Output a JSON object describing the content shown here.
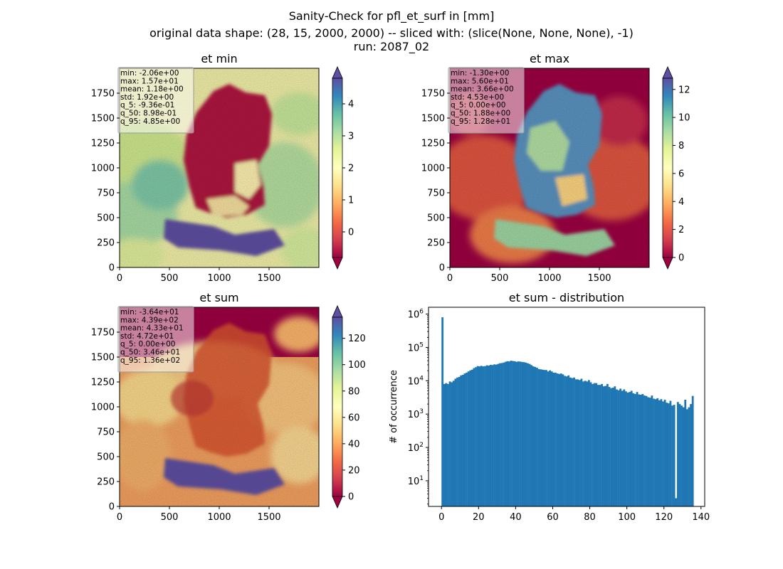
{
  "figure": {
    "title_line1": "Sanity-Check for pfl_et_surf in [mm]",
    "title_line2": "original data shape: (28, 15, 2000, 2000) -- sliced with: (slice(None, None, None), -1)",
    "title_line3": "run: 2087_02"
  },
  "chart_data": [
    {
      "type": "heatmap",
      "title": "et min",
      "colormap": "Spectral",
      "xlim": [
        0,
        2000
      ],
      "ylim": [
        0,
        2000
      ],
      "xticks": [
        "0",
        "500",
        "1000",
        "1500"
      ],
      "yticks": [
        "0",
        "250",
        "500",
        "750",
        "1000",
        "1250",
        "1500",
        "1750"
      ],
      "colorbar_range": [
        -0.8,
        4.8
      ],
      "colorbar_ticks": [
        "0",
        "1",
        "2",
        "3",
        "4"
      ],
      "colorbar_values": [
        0,
        1,
        2,
        3,
        4
      ],
      "colorbar_extend": "both",
      "stats": [
        "min: -2.06e+00",
        "max: 1.57e+01",
        "mean: 1.18e+00",
        "std: 1.92e+00",
        "q_5: -9.36e-01",
        "q_50: 8.98e-01",
        "q_95: 4.85e+00"
      ]
    },
    {
      "type": "heatmap",
      "title": "et max",
      "colormap": "Spectral",
      "xlim": [
        0,
        2000
      ],
      "ylim": [
        0,
        2000
      ],
      "xticks": [
        "0",
        "500",
        "1000",
        "1500"
      ],
      "yticks": [
        "0",
        "250",
        "500",
        "750",
        "1000",
        "1250",
        "1500",
        "1750"
      ],
      "colorbar_range": [
        0,
        12.8
      ],
      "colorbar_ticks": [
        "0",
        "2",
        "4",
        "6",
        "8",
        "10",
        "12"
      ],
      "colorbar_values": [
        0,
        2,
        4,
        6,
        8,
        10,
        12
      ],
      "colorbar_extend": "both",
      "stats": [
        "min: -1.30e+00",
        "max: 5.60e+01",
        "mean: 3.66e+00",
        "std: 4.53e+00",
        "q_5: 0.00e+00",
        "q_50: 1.88e+00",
        "q_95: 1.28e+01"
      ]
    },
    {
      "type": "heatmap",
      "title": "et sum",
      "colormap": "Spectral",
      "xlim": [
        0,
        2000
      ],
      "ylim": [
        0,
        2000
      ],
      "xticks": [
        "0",
        "500",
        "1000",
        "1500"
      ],
      "yticks": [
        "0",
        "250",
        "500",
        "750",
        "1000",
        "1250",
        "1500",
        "1750"
      ],
      "colorbar_range": [
        0,
        136
      ],
      "colorbar_ticks": [
        "0",
        "20",
        "40",
        "60",
        "80",
        "100",
        "120"
      ],
      "colorbar_values": [
        0,
        20,
        40,
        60,
        80,
        100,
        120
      ],
      "colorbar_extend": "both",
      "stats": [
        "min: -3.64e+01",
        "max: 4.39e+02",
        "mean: 4.33e+01",
        "std: 4.72e+01",
        "q_5: 0.00e+00",
        "q_50: 3.46e+01",
        "q_95: 1.36e+02"
      ]
    },
    {
      "type": "bar",
      "title": "et sum - distribution",
      "ylabel": "# of occurrence",
      "xlabel": "",
      "yscale": "log",
      "xlim": [
        -7,
        142
      ],
      "ylim": [
        1.7,
        1600000
      ],
      "xticks": [
        0,
        20,
        40,
        60,
        80,
        100,
        120,
        140
      ],
      "yticks": [
        1,
        2,
        3,
        4,
        5,
        6
      ],
      "color": "#1f77b4",
      "x": [
        0.5,
        1.5,
        2.5,
        3.5,
        4.5,
        5.5,
        6.5,
        7.5,
        8.5,
        9.5,
        10.5,
        11.5,
        12.5,
        13.5,
        14.5,
        15.5,
        16.5,
        17.5,
        18.5,
        19.5,
        20.5,
        21.5,
        22.5,
        23.5,
        24.5,
        25.5,
        26.5,
        27.5,
        28.5,
        29.5,
        30.5,
        31.5,
        32.5,
        33.5,
        34.5,
        35.5,
        36.5,
        37.5,
        38.5,
        39.5,
        40.5,
        41.5,
        42.5,
        43.5,
        44.5,
        45.5,
        46.5,
        47.5,
        48.5,
        49.5,
        50.5,
        51.5,
        52.5,
        53.5,
        54.5,
        55.5,
        56.5,
        57.5,
        58.5,
        59.5,
        60.5,
        61.5,
        62.5,
        63.5,
        64.5,
        65.5,
        66.5,
        67.5,
        68.5,
        69.5,
        70.5,
        71.5,
        72.5,
        73.5,
        74.5,
        75.5,
        76.5,
        77.5,
        78.5,
        79.5,
        80.5,
        81.5,
        82.5,
        83.5,
        84.5,
        85.5,
        86.5,
        87.5,
        88.5,
        89.5,
        90.5,
        91.5,
        92.5,
        93.5,
        94.5,
        95.5,
        96.5,
        97.5,
        98.5,
        99.5,
        100.5,
        101.5,
        102.5,
        103.5,
        104.5,
        105.5,
        106.5,
        107.5,
        108.5,
        109.5,
        110.5,
        111.5,
        112.5,
        113.5,
        114.5,
        115.5,
        116.5,
        117.5,
        118.5,
        119.5,
        120.5,
        121.5,
        122.5,
        123.5,
        124.5,
        125.5,
        126.5,
        127.5,
        128.5,
        129.5,
        130.5,
        131.5,
        132.5,
        133.5,
        134.5,
        135.5
      ],
      "values": [
        800000,
        8000,
        8500,
        8000,
        9500,
        9000,
        10000,
        11500,
        12500,
        13000,
        14500,
        15000,
        16500,
        17500,
        19000,
        20500,
        21500,
        24000,
        25500,
        27500,
        27000,
        28000,
        27000,
        27500,
        29000,
        28500,
        30000,
        29500,
        31000,
        30500,
        32000,
        33500,
        34000,
        35000,
        37000,
        38500,
        38000,
        40000,
        39000,
        38500,
        37000,
        38000,
        37500,
        36500,
        36000,
        35000,
        33500,
        32000,
        29500,
        27000,
        26000,
        24500,
        22500,
        22000,
        21500,
        21000,
        21000,
        19000,
        20500,
        19000,
        17500,
        17500,
        16500,
        16000,
        16500,
        15500,
        14000,
        13500,
        14500,
        12500,
        12000,
        12500,
        11000,
        11000,
        10500,
        11500,
        9500,
        10000,
        9500,
        10500,
        9000,
        8000,
        8500,
        8500,
        7500,
        7500,
        8000,
        6800,
        7000,
        8000,
        6500,
        6000,
        6200,
        6800,
        5500,
        5200,
        5800,
        5000,
        5500,
        4800,
        4400,
        4600,
        5000,
        4200,
        4000,
        4600,
        3900,
        3800,
        4000,
        3600,
        3500,
        3200,
        3100,
        3600,
        2900,
        2800,
        3000,
        2600,
        2800,
        2400,
        2700,
        2200,
        2100,
        2500,
        1800,
        1900,
        3,
        2300,
        2000,
        1800,
        1600,
        2700,
        1400,
        1600,
        2000,
        3500
      ]
    }
  ]
}
